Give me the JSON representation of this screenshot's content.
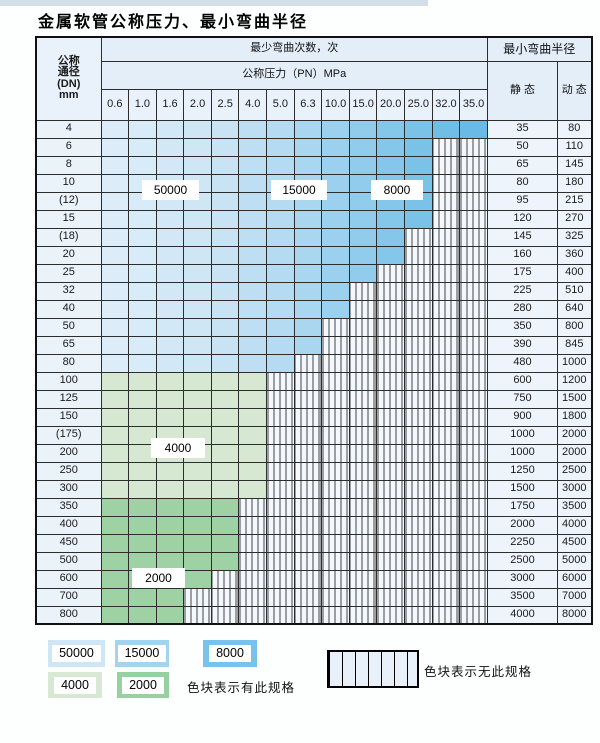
{
  "page": {
    "title": "金属软管公称压力、最小弯曲半径"
  },
  "table": {
    "corner_lines": [
      "公称",
      "通径",
      "(DN)",
      "mm"
    ],
    "headers": {
      "bend_cycles": "最少弯曲次数，次",
      "pressure": "公称压力（PN）MPa",
      "radius": "最小弯曲半径",
      "static": "静 态",
      "dynamic": "动 态"
    },
    "pressure_columns": [
      "0.6",
      "1.0",
      "1.6",
      "2.0",
      "2.5",
      "4.0",
      "5.0",
      "6.3",
      "10.0",
      "15.0",
      "20.0",
      "25.0",
      "32.0",
      "35.0"
    ],
    "zone_labels": {
      "z50000": "50000",
      "z15000": "15000",
      "z8000": "8000",
      "z4000": "4000",
      "z2000": "2000"
    },
    "rows": [
      {
        "dn": "4",
        "zone": "blue",
        "colored_through_col": 14,
        "static": "35",
        "dynamic": "80"
      },
      {
        "dn": "6",
        "zone": "blue",
        "colored_through_col": 12,
        "static": "50",
        "dynamic": "110"
      },
      {
        "dn": "8",
        "zone": "blue",
        "colored_through_col": 12,
        "static": "65",
        "dynamic": "145"
      },
      {
        "dn": "10",
        "zone": "blue",
        "colored_through_col": 12,
        "static": "80",
        "dynamic": "180"
      },
      {
        "dn": "(12)",
        "zone": "blue",
        "colored_through_col": 12,
        "static": "95",
        "dynamic": "215"
      },
      {
        "dn": "15",
        "zone": "blue",
        "colored_through_col": 12,
        "static": "120",
        "dynamic": "270"
      },
      {
        "dn": "(18)",
        "zone": "blue",
        "colored_through_col": 11,
        "static": "145",
        "dynamic": "325"
      },
      {
        "dn": "20",
        "zone": "blue",
        "colored_through_col": 11,
        "static": "160",
        "dynamic": "360"
      },
      {
        "dn": "25",
        "zone": "blue",
        "colored_through_col": 10,
        "static": "175",
        "dynamic": "400"
      },
      {
        "dn": "32",
        "zone": "blue",
        "colored_through_col": 9,
        "static": "225",
        "dynamic": "510"
      },
      {
        "dn": "40",
        "zone": "blue",
        "colored_through_col": 9,
        "static": "280",
        "dynamic": "640"
      },
      {
        "dn": "50",
        "zone": "blue",
        "colored_through_col": 8,
        "static": "350",
        "dynamic": "800"
      },
      {
        "dn": "65",
        "zone": "blue",
        "colored_through_col": 8,
        "static": "390",
        "dynamic": "845"
      },
      {
        "dn": "80",
        "zone": "blue",
        "colored_through_col": 7,
        "static": "480",
        "dynamic": "1000"
      },
      {
        "dn": "100",
        "zone": "green4000",
        "colored_through_col": 6,
        "static": "600",
        "dynamic": "1200"
      },
      {
        "dn": "125",
        "zone": "green4000",
        "colored_through_col": 6,
        "static": "750",
        "dynamic": "1500"
      },
      {
        "dn": "150",
        "zone": "green4000",
        "colored_through_col": 6,
        "static": "900",
        "dynamic": "1800"
      },
      {
        "dn": "(175)",
        "zone": "green4000",
        "colored_through_col": 6,
        "static": "1000",
        "dynamic": "2000"
      },
      {
        "dn": "200",
        "zone": "green4000",
        "colored_through_col": 6,
        "static": "1000",
        "dynamic": "2000"
      },
      {
        "dn": "250",
        "zone": "green4000",
        "colored_through_col": 6,
        "static": "1250",
        "dynamic": "2500"
      },
      {
        "dn": "300",
        "zone": "green4000",
        "colored_through_col": 6,
        "static": "1500",
        "dynamic": "3000"
      },
      {
        "dn": "350",
        "zone": "green2000",
        "colored_through_col": 5,
        "static": "1750",
        "dynamic": "3500"
      },
      {
        "dn": "400",
        "zone": "green2000",
        "colored_through_col": 5,
        "static": "2000",
        "dynamic": "4000"
      },
      {
        "dn": "450",
        "zone": "green2000",
        "colored_through_col": 5,
        "static": "2250",
        "dynamic": "4500"
      },
      {
        "dn": "500",
        "zone": "green2000",
        "colored_through_col": 5,
        "static": "2500",
        "dynamic": "5000"
      },
      {
        "dn": "600",
        "zone": "green2000",
        "colored_through_col": 4,
        "static": "3000",
        "dynamic": "6000"
      },
      {
        "dn": "700",
        "zone": "green2000",
        "colored_through_col": 3,
        "static": "3500",
        "dynamic": "7000"
      },
      {
        "dn": "800",
        "zone": "green2000",
        "colored_through_col": 3,
        "static": "4000",
        "dynamic": "8000"
      }
    ]
  },
  "legend": {
    "items": [
      {
        "label": "50000",
        "color": "#cfe6f6"
      },
      {
        "label": "15000",
        "color": "#a3d4ef"
      },
      {
        "label": "8000",
        "color": "#79c2e9"
      },
      {
        "label": "4000",
        "color": "#d7e9d3"
      },
      {
        "label": "2000",
        "color": "#98d1a1"
      }
    ],
    "present_note": "色块表示有此规格",
    "absent_note": "色块表示无此规格"
  },
  "colors": {
    "blue_columns": [
      "#dcedf9",
      "#d8ebf8",
      "#d3e8f6",
      "#cfe6f5",
      "#c8e3f4",
      "#bedff3",
      "#b4dbf1",
      "#aad7f0",
      "#9bd1ee",
      "#91ccec",
      "#84c7ea",
      "#7ac2e8",
      "#70bde6",
      "#6abae5",
      "#5fb5e3"
    ],
    "green_4000": "#d6e8d1",
    "green_2000": "#9ed2a4",
    "hatch_line": "#454545",
    "hatch_bg": "#f3f8fd",
    "header_bg": "#e3eef9",
    "value_bg": "#eef4fb"
  }
}
